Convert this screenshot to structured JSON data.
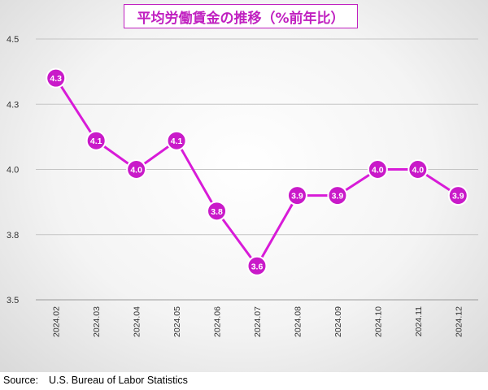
{
  "chart_data": {
    "type": "line",
    "title": "平均労働賃金の推移（%前年比）",
    "categories": [
      "2024.02",
      "2024.03",
      "2024.04",
      "2024.05",
      "2024.06",
      "2024.07",
      "2024.08",
      "2024.09",
      "2024.10",
      "2024.11",
      "2024.12"
    ],
    "values": [
      4.35,
      4.11,
      4.0,
      4.11,
      3.84,
      3.63,
      3.9,
      3.9,
      4.0,
      4.0,
      3.9
    ],
    "data_labels": [
      "4.3",
      "4.1",
      "4.0",
      "4.1",
      "3.8",
      "3.6",
      "3.9",
      "3.9",
      "4.0",
      "4.0",
      "3.9"
    ],
    "y_ticks": [
      3.5,
      3.75,
      4.0,
      4.25,
      4.5
    ],
    "y_tick_labels": [
      "3.5",
      "3.8",
      "4.0",
      "4.3",
      "4.5"
    ],
    "ylim": [
      3.5,
      4.5
    ],
    "xlabel": "",
    "ylabel": "",
    "grid": true,
    "line_color": "#d81bd8",
    "marker_color": "#c91ac9",
    "title_color": "#c020c0"
  },
  "source": {
    "label": "Source:",
    "text": "U.S. Bureau of Labor Statistics"
  }
}
